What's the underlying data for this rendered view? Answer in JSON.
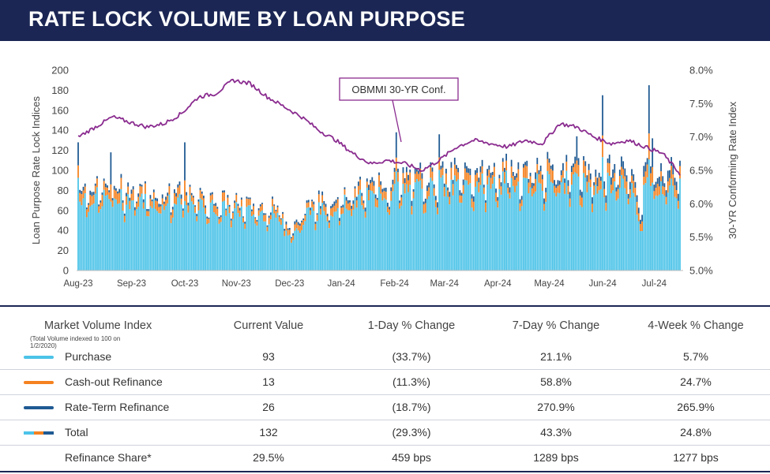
{
  "title": "RATE LOCK VOLUME BY LOAN PURPOSE",
  "colors": {
    "purchase": "#4cc3e8",
    "cashout": "#f58220",
    "rateterm": "#1f5a93",
    "rate_line": "#8a2b8f",
    "header_bg": "#1b2654"
  },
  "chart_data": {
    "type": "bar",
    "stacked": true,
    "title": "",
    "ylabel": "Loan Purpose Rate Lock Indices",
    "y2label": "30-YR Conforming Rate Index",
    "ylim": [
      0,
      200
    ],
    "y2lim": [
      5.0,
      8.0
    ],
    "yticks": [
      "0",
      "20",
      "40",
      "60",
      "80",
      "100",
      "120",
      "140",
      "160",
      "180",
      "200"
    ],
    "y2ticks": [
      "5.0%",
      "5.5%",
      "6.0%",
      "6.5%",
      "7.0%",
      "7.5%",
      "8.0%"
    ],
    "x_labels": [
      "Aug-23",
      "Sep-23",
      "Oct-23",
      "Nov-23",
      "Dec-23",
      "Jan-24",
      "Feb-24",
      "Mar-24",
      "Apr-24",
      "May-24",
      "Jun-24",
      "Jul-24"
    ],
    "annotation": "OBMMI 30-YR Conf.",
    "monthly_purchase_level": [
      75,
      72,
      68,
      62,
      56,
      62,
      78,
      84,
      87,
      90,
      88,
      86
    ],
    "monthly_cashout_level": [
      9,
      9,
      8,
      7,
      6,
      7,
      9,
      10,
      10,
      10,
      10,
      10
    ],
    "monthly_rateterm_level": [
      3,
      3,
      3,
      2,
      2,
      3,
      4,
      5,
      5,
      5,
      6,
      8
    ],
    "series": [
      {
        "name": "Purchase",
        "color": "#4cc3e8"
      },
      {
        "name": "Cash-out Refinance",
        "color": "#f58220"
      },
      {
        "name": "Rate-Term Refinance",
        "color": "#1f5a93"
      },
      {
        "name": "OBMMI 30-YR Conf.",
        "color": "#8a2b8f",
        "axis": "right"
      }
    ],
    "rate_line": {
      "x": [
        0,
        10,
        20,
        30,
        40,
        50,
        60,
        70,
        80,
        90,
        100,
        110,
        120,
        130,
        140,
        150,
        160,
        170,
        180,
        190,
        200,
        210,
        220,
        230,
        240,
        250,
        260,
        270,
        280,
        290,
        300,
        310,
        320,
        330,
        340,
        350
      ],
      "y": [
        7.0,
        7.15,
        7.3,
        7.22,
        7.15,
        7.2,
        7.35,
        7.6,
        7.65,
        7.85,
        7.8,
        7.6,
        7.45,
        7.3,
        7.1,
        6.95,
        6.75,
        6.6,
        6.65,
        6.6,
        6.5,
        6.65,
        6.85,
        6.95,
        6.9,
        6.85,
        6.95,
        6.9,
        7.2,
        7.15,
        7.0,
        6.9,
        6.95,
        6.85,
        6.75,
        6.45
      ]
    },
    "spikes": [
      {
        "x": 0,
        "total": 128
      },
      {
        "x": 19,
        "total": 118
      },
      {
        "x": 62,
        "total": 128
      },
      {
        "x": 185,
        "total": 138
      },
      {
        "x": 210,
        "total": 136
      },
      {
        "x": 290,
        "total": 134
      },
      {
        "x": 305,
        "total": 175
      },
      {
        "x": 332,
        "total": 185
      },
      {
        "x": 334,
        "total": 132
      }
    ]
  },
  "table": {
    "header": {
      "label": "Market Volume Index",
      "note": "(Total Volume indexed to 100 on 1/2/2020)",
      "c1": "Current Value",
      "c2": "1-Day % Change",
      "c3": "7-Day % Change",
      "c4": "4-Week % Change"
    },
    "rows": [
      {
        "label": "Purchase",
        "c1": "93",
        "c2": "(33.7%)",
        "c3": "21.1%",
        "c4": "5.7%",
        "swatch": "#4cc3e8"
      },
      {
        "label": "Cash-out Refinance",
        "c1": "13",
        "c2": "(11.3%)",
        "c3": "58.8%",
        "c4": "24.7%",
        "swatch": "#f58220"
      },
      {
        "label": "Rate-Term Refinance",
        "c1": "26",
        "c2": "(18.7%)",
        "c3": "270.9%",
        "c4": "265.9%",
        "swatch": "#1f5a93"
      },
      {
        "label": "Total",
        "c1": "132",
        "c2": "(29.3%)",
        "c3": "43.3%",
        "c4": "24.8%",
        "swatch": "mixed"
      },
      {
        "label": "Refinance Share*",
        "c1": "29.5%",
        "c2": "459 bps",
        "c3": "1289 bps",
        "c4": "1277 bps",
        "swatch": ""
      }
    ]
  }
}
